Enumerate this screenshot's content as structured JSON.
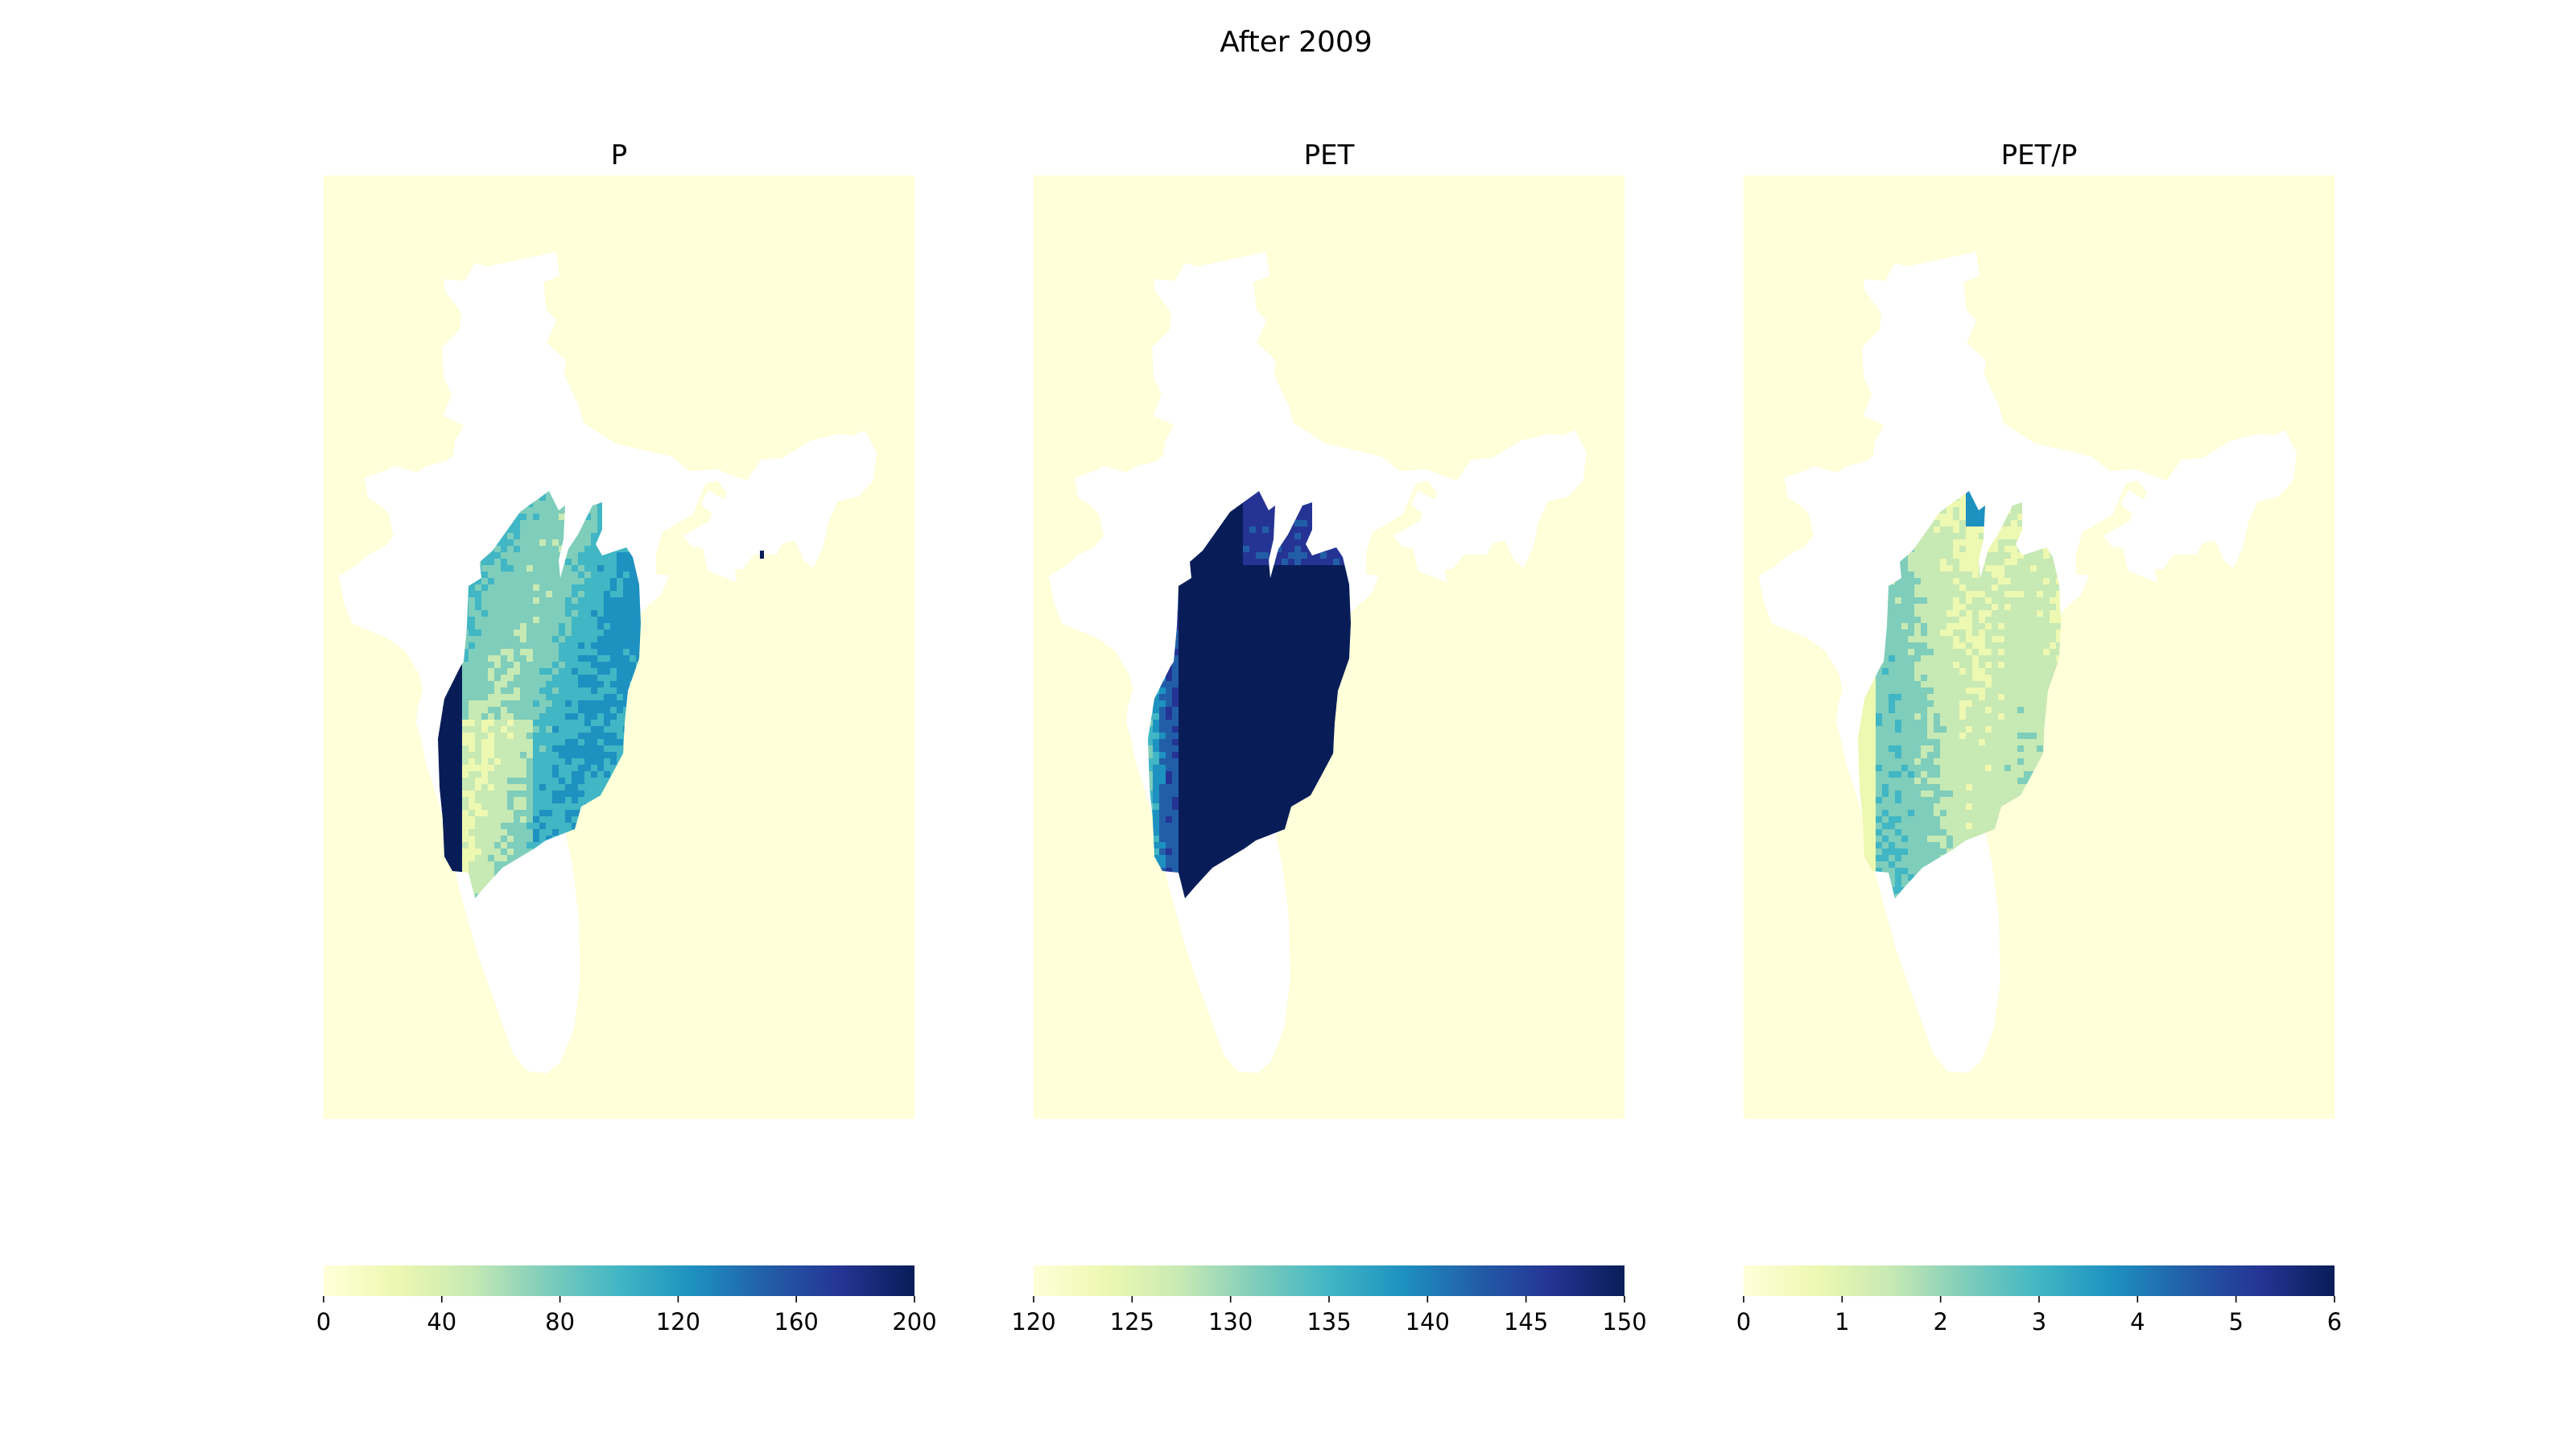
{
  "figure": {
    "title": "After 2009"
  },
  "colormap": {
    "name": "YlGnBu",
    "stops": [
      "#ffffd9",
      "#edf8b1",
      "#c7e9b4",
      "#7fcdbb",
      "#41b6c4",
      "#1d91c0",
      "#225ea8",
      "#253494",
      "#081d58"
    ]
  },
  "background_color": "#ffffd9",
  "land_color": "#ffffff",
  "panels": [
    {
      "title": "P",
      "colorbar": {
        "min": 0,
        "max": 200,
        "ticks": [
          "0",
          "40",
          "80",
          "120",
          "160",
          "200"
        ]
      },
      "field": "p"
    },
    {
      "title": "PET",
      "colorbar": {
        "min": 120,
        "max": 150,
        "ticks": [
          "120",
          "125",
          "130",
          "135",
          "140",
          "145",
          "150"
        ]
      },
      "field": "pet"
    },
    {
      "title": "PET/P",
      "colorbar": {
        "min": 0,
        "max": 6,
        "ticks": [
          "0",
          "1",
          "2",
          "3",
          "4",
          "5",
          "6"
        ]
      },
      "field": "ratio"
    }
  ]
}
